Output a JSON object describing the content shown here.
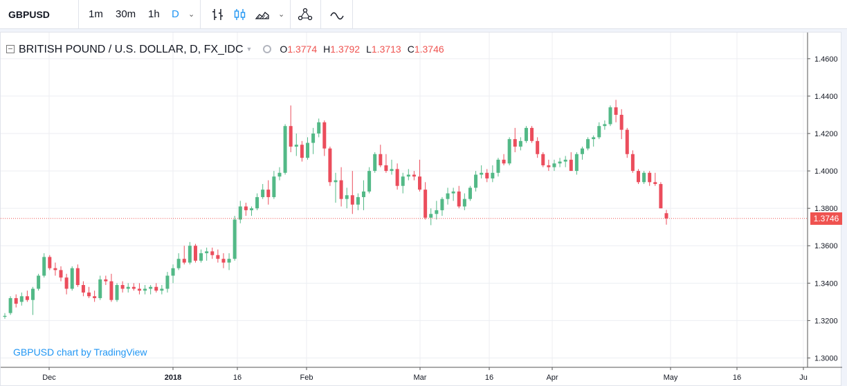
{
  "toolbar": {
    "symbol": "GBPUSD",
    "intervals": [
      {
        "label": "1m",
        "active": false
      },
      {
        "label": "30m",
        "active": false
      },
      {
        "label": "1h",
        "active": false
      },
      {
        "label": "D",
        "active": true
      }
    ],
    "icons": [
      "bar-style-icon",
      "candles-icon",
      "area-chart-icon",
      "compare-icon",
      "indicators-icon"
    ]
  },
  "legend": {
    "title": "BRITISH POUND / U.S. DOLLAR, D, FX_IDC",
    "open_label": "O",
    "open": "1.3774",
    "high_label": "H",
    "high": "1.3792",
    "low_label": "L",
    "low": "1.3713",
    "close_label": "C",
    "close": "1.3746"
  },
  "watermark": "GBPUSD chart by TradingView",
  "last_price_label": "1.3746",
  "colors": {
    "up": "#53b987",
    "down": "#eb4d5c",
    "price_line": "#ef5350",
    "accent": "#2196f3"
  },
  "chart_data": {
    "type": "candlestick",
    "y_axis_labels": [
      "1.4600",
      "1.4400",
      "1.4200",
      "1.4000",
      "1.3800",
      "1.3600",
      "1.3400",
      "1.3200",
      "1.3000"
    ],
    "x_axis_labels": [
      "Dec",
      "2018",
      "16",
      "Feb",
      "Mar",
      "16",
      "Apr",
      "May",
      "16",
      "Ju"
    ],
    "ylim": [
      1.295,
      1.474
    ],
    "last_price": 1.3746,
    "candles": [
      [
        1.322,
        1.324,
        1.321,
        1.3225
      ],
      [
        1.324,
        1.333,
        1.323,
        1.332
      ],
      [
        1.332,
        1.334,
        1.327,
        1.329
      ],
      [
        1.33,
        1.335,
        1.328,
        1.333
      ],
      [
        1.333,
        1.336,
        1.33,
        1.331
      ],
      [
        1.331,
        1.338,
        1.323,
        1.337
      ],
      [
        1.337,
        1.345,
        1.336,
        1.344
      ],
      [
        1.344,
        1.356,
        1.343,
        1.354
      ],
      [
        1.354,
        1.355,
        1.347,
        1.348
      ],
      [
        1.348,
        1.351,
        1.344,
        1.347
      ],
      [
        1.347,
        1.349,
        1.341,
        1.343
      ],
      [
        1.343,
        1.345,
        1.334,
        1.337
      ],
      [
        1.337,
        1.349,
        1.336,
        1.348
      ],
      [
        1.348,
        1.35,
        1.338,
        1.339
      ],
      [
        1.339,
        1.341,
        1.333,
        1.335
      ],
      [
        1.335,
        1.338,
        1.332,
        1.333
      ],
      [
        1.333,
        1.336,
        1.33,
        1.332
      ],
      [
        1.332,
        1.344,
        1.331,
        1.342
      ],
      [
        1.342,
        1.344,
        1.339,
        1.341
      ],
      [
        1.341,
        1.345,
        1.33,
        1.331
      ],
      [
        1.331,
        1.34,
        1.33,
        1.339
      ],
      [
        1.339,
        1.341,
        1.335,
        1.337
      ],
      [
        1.337,
        1.34,
        1.335,
        1.338
      ],
      [
        1.338,
        1.34,
        1.336,
        1.337
      ],
      [
        1.337,
        1.34,
        1.334,
        1.336
      ],
      [
        1.336,
        1.339,
        1.334,
        1.337
      ],
      [
        1.337,
        1.339,
        1.334,
        1.338
      ],
      [
        1.338,
        1.34,
        1.335,
        1.336
      ],
      [
        1.336,
        1.339,
        1.334,
        1.337
      ],
      [
        1.337,
        1.346,
        1.335,
        1.344
      ],
      [
        1.344,
        1.35,
        1.34,
        1.348
      ],
      [
        1.348,
        1.356,
        1.347,
        1.353
      ],
      [
        1.353,
        1.36,
        1.35,
        1.351
      ],
      [
        1.351,
        1.362,
        1.35,
        1.36
      ],
      [
        1.36,
        1.361,
        1.351,
        1.352
      ],
      [
        1.352,
        1.358,
        1.351,
        1.356
      ],
      [
        1.356,
        1.359,
        1.352,
        1.357
      ],
      [
        1.357,
        1.359,
        1.353,
        1.355
      ],
      [
        1.355,
        1.358,
        1.351,
        1.353
      ],
      [
        1.353,
        1.356,
        1.348,
        1.351
      ],
      [
        1.351,
        1.356,
        1.347,
        1.353
      ],
      [
        1.353,
        1.376,
        1.352,
        1.374
      ],
      [
        1.374,
        1.384,
        1.372,
        1.381
      ],
      [
        1.381,
        1.383,
        1.376,
        1.379
      ],
      [
        1.379,
        1.381,
        1.376,
        1.38
      ],
      [
        1.38,
        1.388,
        1.379,
        1.386
      ],
      [
        1.386,
        1.393,
        1.385,
        1.39
      ],
      [
        1.39,
        1.395,
        1.382,
        1.386
      ],
      [
        1.386,
        1.4,
        1.385,
        1.397
      ],
      [
        1.397,
        1.402,
        1.395,
        1.399
      ],
      [
        1.399,
        1.425,
        1.398,
        1.424
      ],
      [
        1.424,
        1.435,
        1.41,
        1.413
      ],
      [
        1.413,
        1.42,
        1.408,
        1.414
      ],
      [
        1.414,
        1.416,
        1.405,
        1.407
      ],
      [
        1.407,
        1.418,
        1.406,
        1.415
      ],
      [
        1.415,
        1.423,
        1.409,
        1.42
      ],
      [
        1.42,
        1.428,
        1.418,
        1.426
      ],
      [
        1.426,
        1.427,
        1.408,
        1.412
      ],
      [
        1.412,
        1.413,
        1.392,
        1.394
      ],
      [
        1.394,
        1.399,
        1.383,
        1.395
      ],
      [
        1.395,
        1.402,
        1.381,
        1.385
      ],
      [
        1.385,
        1.391,
        1.38,
        1.387
      ],
      [
        1.387,
        1.4,
        1.377,
        1.382
      ],
      [
        1.382,
        1.388,
        1.379,
        1.386
      ],
      [
        1.386,
        1.395,
        1.379,
        1.389
      ],
      [
        1.389,
        1.402,
        1.388,
        1.4
      ],
      [
        1.4,
        1.41,
        1.399,
        1.409
      ],
      [
        1.409,
        1.414,
        1.402,
        1.403
      ],
      [
        1.403,
        1.409,
        1.399,
        1.4
      ],
      [
        1.4,
        1.406,
        1.398,
        1.401
      ],
      [
        1.401,
        1.404,
        1.39,
        1.392
      ],
      [
        1.392,
        1.399,
        1.388,
        1.397
      ],
      [
        1.397,
        1.401,
        1.395,
        1.398
      ],
      [
        1.398,
        1.4,
        1.395,
        1.397
      ],
      [
        1.397,
        1.406,
        1.389,
        1.39
      ],
      [
        1.39,
        1.394,
        1.374,
        1.375
      ],
      [
        1.375,
        1.38,
        1.371,
        1.377
      ],
      [
        1.377,
        1.384,
        1.374,
        1.379
      ],
      [
        1.379,
        1.386,
        1.376,
        1.385
      ],
      [
        1.385,
        1.391,
        1.382,
        1.388
      ],
      [
        1.388,
        1.391,
        1.384,
        1.389
      ],
      [
        1.389,
        1.392,
        1.38,
        1.381
      ],
      [
        1.381,
        1.388,
        1.379,
        1.385
      ],
      [
        1.385,
        1.392,
        1.384,
        1.391
      ],
      [
        1.391,
        1.4,
        1.389,
        1.398
      ],
      [
        1.398,
        1.403,
        1.396,
        1.399
      ],
      [
        1.399,
        1.401,
        1.394,
        1.396
      ],
      [
        1.396,
        1.403,
        1.394,
        1.399
      ],
      [
        1.399,
        1.407,
        1.397,
        1.406
      ],
      [
        1.406,
        1.409,
        1.403,
        1.404
      ],
      [
        1.404,
        1.418,
        1.403,
        1.417
      ],
      [
        1.417,
        1.423,
        1.41,
        1.413
      ],
      [
        1.413,
        1.418,
        1.411,
        1.416
      ],
      [
        1.416,
        1.424,
        1.415,
        1.423
      ],
      [
        1.423,
        1.424,
        1.415,
        1.416
      ],
      [
        1.416,
        1.418,
        1.407,
        1.409
      ],
      [
        1.409,
        1.41,
        1.402,
        1.403
      ],
      [
        1.403,
        1.406,
        1.4,
        1.402
      ],
      [
        1.402,
        1.406,
        1.4,
        1.404
      ],
      [
        1.404,
        1.407,
        1.402,
        1.405
      ],
      [
        1.405,
        1.408,
        1.402,
        1.406
      ],
      [
        1.406,
        1.41,
        1.4,
        1.4
      ],
      [
        1.4,
        1.41,
        1.398,
        1.409
      ],
      [
        1.409,
        1.413,
        1.406,
        1.412
      ],
      [
        1.412,
        1.418,
        1.411,
        1.417
      ],
      [
        1.417,
        1.419,
        1.413,
        1.418
      ],
      [
        1.418,
        1.426,
        1.417,
        1.424
      ],
      [
        1.424,
        1.427,
        1.422,
        1.425
      ],
      [
        1.425,
        1.435,
        1.424,
        1.434
      ],
      [
        1.434,
        1.438,
        1.426,
        1.43
      ],
      [
        1.43,
        1.433,
        1.417,
        1.422
      ],
      [
        1.422,
        1.423,
        1.407,
        1.409
      ],
      [
        1.409,
        1.411,
        1.399,
        1.4
      ],
      [
        1.4,
        1.401,
        1.393,
        1.394
      ],
      [
        1.394,
        1.4,
        1.393,
        1.399
      ],
      [
        1.399,
        1.4,
        1.392,
        1.394
      ],
      [
        1.394,
        1.399,
        1.392,
        1.393
      ],
      [
        1.393,
        1.394,
        1.38,
        1.38
      ],
      [
        1.3774,
        1.3792,
        1.3713,
        1.3746
      ]
    ]
  }
}
